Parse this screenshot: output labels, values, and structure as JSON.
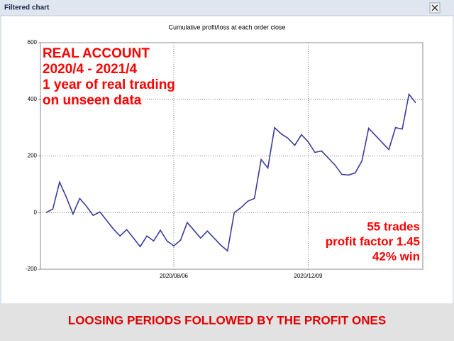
{
  "window_title": "Filtered chart",
  "caption": "LOOSING PERIODS FOLLOWED BY THE PROFIT ONES",
  "chart_data": {
    "type": "line",
    "title": "Cumulative profit/loss at each order close",
    "categories": [
      null,
      null,
      null,
      null,
      null,
      null,
      null,
      null,
      null,
      null,
      null,
      null,
      null,
      null,
      null,
      null,
      null,
      null,
      null,
      "2020/08/06",
      null,
      null,
      null,
      null,
      null,
      null,
      null,
      null,
      null,
      null,
      null,
      null,
      null,
      null,
      null,
      null,
      null,
      null,
      null,
      "2020/12/09",
      null,
      null,
      null,
      null,
      null,
      null,
      null,
      null,
      null,
      null,
      null,
      null,
      null,
      null,
      null,
      null
    ],
    "values": [
      0,
      12.5,
      107.5,
      55,
      -5,
      50,
      22.5,
      -10,
      2.5,
      -27.5,
      -57.5,
      -82.5,
      -60,
      -90,
      -120,
      -82.5,
      -100,
      -62.5,
      -100,
      -117.5,
      -97.5,
      -35,
      -62.5,
      -90,
      -65,
      -90,
      -115,
      -135,
      0,
      17.5,
      40,
      50,
      187.5,
      157.5,
      300,
      277.5,
      262.5,
      237.5,
      275,
      250,
      212.5,
      217.5,
      192.5,
      167.5,
      135,
      132.5,
      140,
      182.5,
      297.5,
      272.5,
      247.5,
      222.5,
      300,
      295,
      417.5,
      387.5
    ],
    "color": "#3b3b9c",
    "ylim": [
      -200,
      600
    ],
    "yticks": [
      -200,
      0,
      200,
      400,
      600
    ],
    "grid": true,
    "annotations_left": [
      "REAL ACCOUNT",
      "2020/4 - 2021/4",
      "1 year of real trading",
      "on unseen data"
    ],
    "annotations_right": [
      "55 trades",
      "profit factor 1.45",
      "42% win"
    ]
  }
}
